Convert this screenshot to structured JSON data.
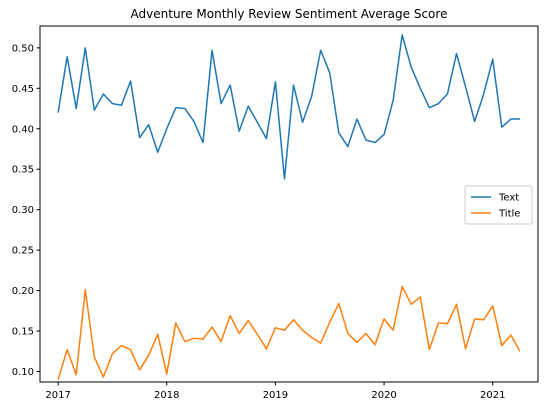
{
  "chart_data": {
    "type": "line",
    "title": "Adventure Monthly Review Sentiment Average Score",
    "xlabel": "",
    "ylabel": "",
    "x_start": "2017-01",
    "xlim": [
      "2016-11",
      "2021-06"
    ],
    "x_ticks": [
      {
        "label": "2017",
        "month_index": 0
      },
      {
        "label": "2018",
        "month_index": 12
      },
      {
        "label": "2019",
        "month_index": 24
      },
      {
        "label": "2020",
        "month_index": 36
      },
      {
        "label": "2021",
        "month_index": 48
      }
    ],
    "ylim": [
      0.087,
      0.527
    ],
    "y_ticks": [
      0.1,
      0.15,
      0.2,
      0.25,
      0.3,
      0.35,
      0.4,
      0.45,
      0.5
    ],
    "grid": false,
    "legend_position": "center-right",
    "series": [
      {
        "name": "Text",
        "color": "#1f77b4",
        "values": [
          0.42,
          0.489,
          0.425,
          0.5,
          0.423,
          0.443,
          0.431,
          0.429,
          0.459,
          0.389,
          0.405,
          0.371,
          0.4,
          0.426,
          0.425,
          0.409,
          0.383,
          0.497,
          0.431,
          0.454,
          0.397,
          0.428,
          0.408,
          0.388,
          0.458,
          0.338,
          0.454,
          0.408,
          0.44,
          0.497,
          0.469,
          0.395,
          0.378,
          0.412,
          0.386,
          0.383,
          0.393,
          0.435,
          0.516,
          0.476,
          0.45,
          0.426,
          0.431,
          0.443,
          0.493,
          0.452,
          0.409,
          0.443,
          0.486,
          0.402,
          0.412,
          0.412
        ]
      },
      {
        "name": "Title",
        "color": "#ff7f0e",
        "values": [
          0.09,
          0.127,
          0.096,
          0.201,
          0.118,
          0.093,
          0.122,
          0.132,
          0.127,
          0.102,
          0.12,
          0.146,
          0.097,
          0.16,
          0.137,
          0.141,
          0.14,
          0.155,
          0.137,
          0.169,
          0.147,
          0.163,
          0.146,
          0.128,
          0.154,
          0.151,
          0.164,
          0.151,
          0.142,
          0.135,
          0.161,
          0.184,
          0.147,
          0.136,
          0.147,
          0.133,
          0.165,
          0.151,
          0.205,
          0.183,
          0.192,
          0.127,
          0.16,
          0.159,
          0.183,
          0.128,
          0.165,
          0.164,
          0.181,
          0.132,
          0.145,
          0.125
        ]
      }
    ]
  }
}
